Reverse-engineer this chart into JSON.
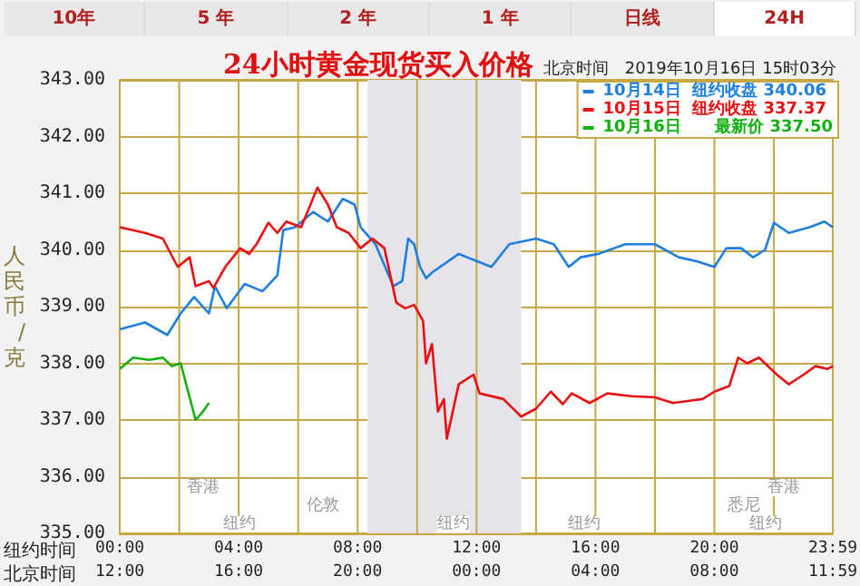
{
  "chart_data": {
    "type": "line",
    "title": "24小时黄金现货买入价格",
    "subtitle": "北京时间　2019年10月16日 15时03分",
    "xlabel": "纽约时间",
    "x2label": "北京时间",
    "ylabel": "人民币/克",
    "annotations": [
      "10年",
      "5 年",
      "2 年",
      "1 年",
      "日线",
      "24H",
      "香港",
      "伦敦",
      "纽约",
      "纽约",
      "纽约",
      "悉尼",
      "香港",
      "纽约"
    ],
    "series": [
      {
        "name": "10月14日  纽约收盘 340.06",
        "color": "#1e7fe0",
        "x": [
          0,
          0.85,
          1.6,
          2.05,
          2.5,
          3.0,
          3.2,
          3.6,
          4.2,
          4.8,
          5.3,
          5.5,
          5.9,
          6.5,
          7.0,
          7.5,
          7.9,
          8.1,
          8.6,
          9.2,
          9.5,
          9.7,
          9.9,
          10.1,
          10.3,
          10.5,
          11.4,
          12.5,
          13.1,
          14.0,
          14.6,
          15.1,
          15.5,
          16.1,
          17.0,
          18.0,
          18.8,
          19.4,
          20.0,
          20.4,
          20.9,
          21.3,
          21.7,
          22.0,
          22.5,
          23.2,
          23.7,
          23.98
        ],
        "values": [
          338.6,
          338.72,
          338.5,
          338.88,
          339.17,
          338.88,
          339.36,
          338.97,
          339.4,
          339.27,
          339.55,
          340.35,
          340.4,
          340.67,
          340.5,
          340.9,
          340.8,
          340.4,
          340.1,
          339.36,
          339.45,
          340.2,
          340.1,
          339.7,
          339.5,
          339.6,
          339.93,
          339.7,
          340.1,
          340.2,
          340.1,
          339.7,
          339.87,
          339.93,
          340.1,
          340.1,
          339.87,
          339.8,
          339.7,
          340.03,
          340.03,
          339.87,
          340.0,
          340.48,
          340.3,
          340.4,
          340.5,
          340.4
        ]
      },
      {
        "name": "10月15日  纽约收盘 337.37",
        "color": "#e81010",
        "x": [
          0,
          0.85,
          1.45,
          1.95,
          2.35,
          2.55,
          3.0,
          3.15,
          3.55,
          4.05,
          4.35,
          4.6,
          5.0,
          5.3,
          5.6,
          6.1,
          6.65,
          7.0,
          7.3,
          7.7,
          8.1,
          8.5,
          8.9,
          9.3,
          9.6,
          9.9,
          10.2,
          10.3,
          10.5,
          10.7,
          10.9,
          11.0,
          11.4,
          11.9,
          12.1,
          12.9,
          13.5,
          14.0,
          14.5,
          14.9,
          15.2,
          15.8,
          16.4,
          17.2,
          18.0,
          18.6,
          19.6,
          20.0,
          20.5,
          20.8,
          21.1,
          21.5,
          22.1,
          22.5,
          23.0,
          23.4,
          23.8,
          23.98
        ],
        "values": [
          340.4,
          340.3,
          340.2,
          339.7,
          339.87,
          339.36,
          339.45,
          339.33,
          339.7,
          340.03,
          339.93,
          340.1,
          340.48,
          340.3,
          340.5,
          340.4,
          341.1,
          340.8,
          340.4,
          340.3,
          340.03,
          340.2,
          340.03,
          339.07,
          338.97,
          339.03,
          338.75,
          338.0,
          338.34,
          337.15,
          337.37,
          336.67,
          337.63,
          337.8,
          337.47,
          337.37,
          337.06,
          337.2,
          337.5,
          337.28,
          337.47,
          337.3,
          337.47,
          337.42,
          337.4,
          337.3,
          337.37,
          337.5,
          337.6,
          338.1,
          338.0,
          338.1,
          337.8,
          337.63,
          337.8,
          337.95,
          337.9,
          337.95
        ]
      },
      {
        "name": "10月16日      最新价 337.50",
        "color": "#10b010",
        "x": [
          0,
          0.45,
          1.0,
          1.45,
          1.75,
          2.05,
          2.25,
          2.55,
          2.8,
          3.0
        ],
        "values": [
          337.9,
          338.1,
          338.06,
          338.1,
          337.95,
          338.0,
          337.6,
          337.0,
          337.15,
          337.3
        ]
      }
    ],
    "xlim": [
      0,
      23.98
    ],
    "xticks": [
      {
        "value": 0,
        "label": "00:00"
      },
      {
        "value": 2,
        "label": null
      },
      {
        "value": 4,
        "label": "04:00"
      },
      {
        "value": 6,
        "label": null
      },
      {
        "value": 8,
        "label": "08:00"
      },
      {
        "value": 10,
        "label": null
      },
      {
        "value": 12,
        "label": "12:00"
      },
      {
        "value": 14,
        "label": null
      },
      {
        "value": 16,
        "label": "16:00"
      },
      {
        "value": 18,
        "label": null
      },
      {
        "value": 20,
        "label": "20:00"
      },
      {
        "value": 22,
        "label": null
      },
      {
        "value": 23.98,
        "label": "23:59"
      }
    ],
    "x2lim": [
      "2019-10-16T12:00",
      "2019-10-17T11:59"
    ],
    "x2ticks": [
      {
        "value": "2019-10-16T12:00",
        "label": "12:00"
      },
      {
        "value": "2019-10-16T16:00",
        "label": "16:00"
      },
      {
        "value": "2019-10-16T20:00",
        "label": "20:00"
      },
      {
        "value": "2019-10-17T00:00",
        "label": "00:00"
      },
      {
        "value": "2019-10-17T04:00",
        "label": "04:00"
      },
      {
        "value": "2019-10-17T08:00",
        "label": "08:00"
      },
      {
        "value": "2019-10-17T11:59",
        "label": "11:59"
      }
    ],
    "ylim": [
      335,
      343
    ],
    "yticks": [
      {
        "value": 335,
        "label": "335.00"
      },
      {
        "value": 336,
        "label": "336.00"
      },
      {
        "value": 337,
        "label": "337.00"
      },
      {
        "value": 338,
        "label": "338.00"
      },
      {
        "value": 339,
        "label": "339.00"
      },
      {
        "value": 340,
        "label": "340.00"
      },
      {
        "value": 341,
        "label": "341.00"
      },
      {
        "value": 342,
        "label": "342.00"
      },
      {
        "value": 343,
        "label": "343.00"
      }
    ],
    "bands": [
      {
        "axis": "x",
        "from": 8.33,
        "to": 13.5,
        "color": "#e6e4ea"
      }
    ],
    "grid": true,
    "legend": "top right",
    "marker": "none",
    "line_style": "solid"
  }
}
